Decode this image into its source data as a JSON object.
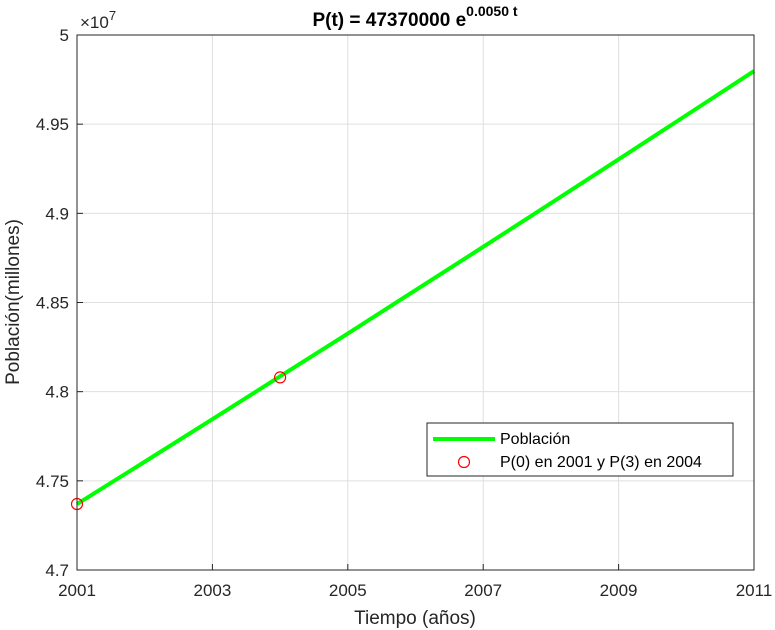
{
  "chart_data": {
    "type": "line",
    "title": {
      "base": "P(t) = 47370000 e",
      "exponent": "0.0050 t"
    },
    "xlabel": "Tiempo (años)",
    "ylabel": "Población(millones)",
    "xlim": [
      2001,
      2011
    ],
    "ylim": [
      47000000,
      50000000
    ],
    "y_multiplier": {
      "base": "×10",
      "exponent": "7"
    },
    "xticks": [
      2001,
      2003,
      2005,
      2007,
      2009,
      2011
    ],
    "xtick_labels": [
      "2001",
      "2003",
      "2005",
      "2007",
      "2009",
      "2011"
    ],
    "yticks": [
      47000000,
      47500000,
      48000000,
      48500000,
      49000000,
      49500000,
      50000000
    ],
    "ytick_labels": [
      "4.7",
      "4.75",
      "4.8",
      "4.85",
      "4.9",
      "4.95",
      "5"
    ],
    "grid": true,
    "legend_position": "lower-right",
    "series": [
      {
        "name": "Población",
        "kind": "line",
        "color": "#00ff00",
        "x": [
          2001,
          2002,
          2003,
          2004,
          2005,
          2006,
          2007,
          2008,
          2009,
          2010,
          2011
        ],
        "y": [
          47370000,
          47607000,
          47846000,
          48086000,
          48326000,
          48569000,
          48812000,
          49057000,
          49303000,
          49550000,
          49798000
        ]
      },
      {
        "name": "P(0) en 2001 y P(3) en 2004",
        "kind": "marker",
        "color": "#ff0000",
        "marker": "circle-open",
        "x": [
          2001,
          2004
        ],
        "y": [
          47370000,
          48080000
        ]
      }
    ]
  }
}
